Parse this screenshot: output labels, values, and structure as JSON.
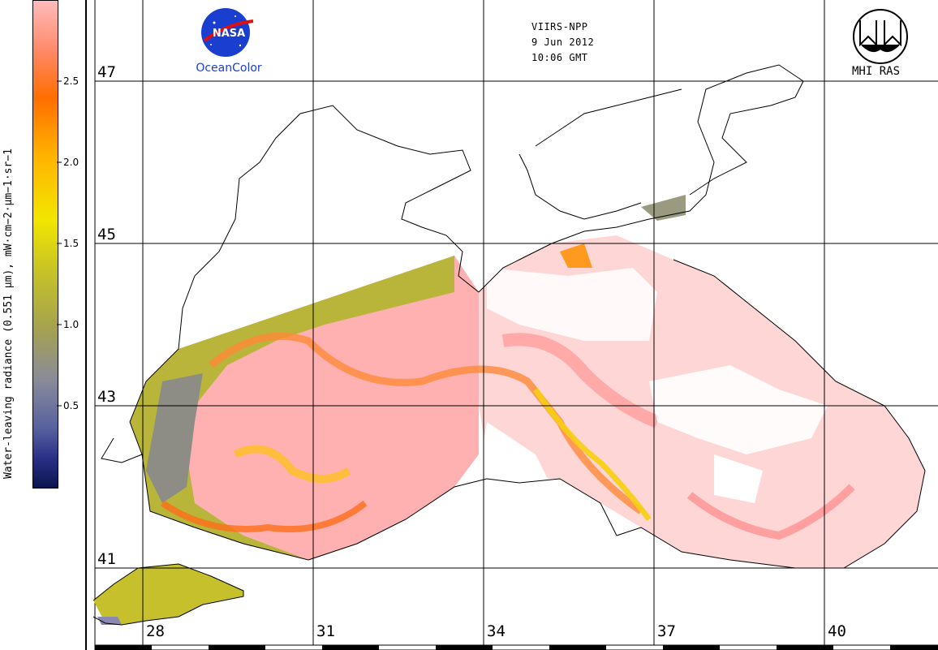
{
  "header": {
    "sensor": "VIIRS-NPP",
    "date": "9 Jun 2012",
    "time": "10:06 GMT"
  },
  "logos": {
    "nasa_text": "NASA",
    "oceancolor": "OceanColor",
    "mhi": "MHI RAS"
  },
  "colorbar": {
    "title": "Water-leaving radiance (0.551 μm), mW·cm−2·μm−1·sr−1",
    "ticks": [
      "0.5",
      "1.0",
      "1.5",
      "2.0",
      "2.5"
    ],
    "range": [
      0,
      3
    ]
  },
  "map": {
    "latitudes": [
      "47",
      "45",
      "43",
      "41"
    ],
    "longitudes": [
      "28",
      "31",
      "34",
      "37",
      "40"
    ]
  },
  "colors": {
    "low": "#0a1550",
    "mid_low": "#8a8a9a",
    "mid": "#f2e600",
    "mid_high": "#ff6e00",
    "high": "#ffbcbc"
  }
}
